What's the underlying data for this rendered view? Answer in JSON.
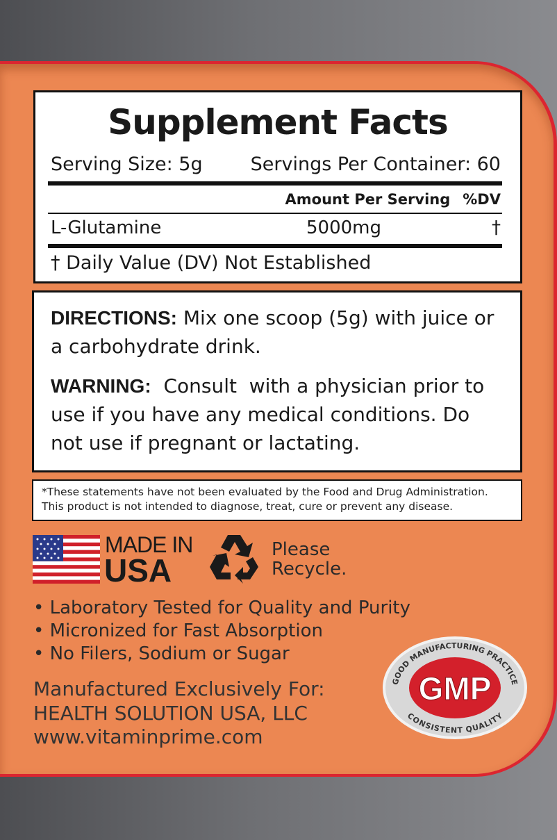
{
  "facts": {
    "title": "Supplement Facts",
    "serving_size": "Serving Size: 5g",
    "servings_per_container": "Servings Per Container: 60",
    "amount_header": "Amount Per Serving",
    "dv_header": "%DV",
    "ingredient": "L-Glutamine",
    "amount": "5000mg",
    "dv": "†",
    "footnote": "† Daily Value (DV) Not Established"
  },
  "directions": {
    "label": "DIRECTIONS:",
    "text": " Mix one scoop (5g) with juice or a carbohydrate drink.",
    "warning_label": "WARNING:",
    "warning_text": "  Consult  with a physician prior to use if you have any medical conditions. Do not use if pregnant or lactating."
  },
  "disclaimer": {
    "line1": "*These statements have not been evaluated by the Food and Drug Administration.",
    "line2": "This product is not intended to diagnose, treat, cure or prevent any disease."
  },
  "badges": {
    "made_in": "MADE IN",
    "usa": "USA",
    "recycle_line1": "Please",
    "recycle_line2": "Recycle.",
    "gmp": "GMP",
    "gmp_top": "GOOD MANUFACTURING PRACTICE",
    "gmp_bottom": "CONSISTENT QUALITY"
  },
  "bullets": [
    "• Laboratory Tested for Quality and Purity",
    "• Micronized for Fast Absorption",
    "• No Filers, Sodium or Sugar"
  ],
  "manufacturer": {
    "line1": "Manufactured Exclusively For:",
    "line2": "HEALTH SOLUTION USA, LLC",
    "line3": "www.vitaminprime.com"
  },
  "colors": {
    "panel": "#ec8752",
    "border_red": "#dc2530",
    "background_gray": "#6e6f73"
  }
}
